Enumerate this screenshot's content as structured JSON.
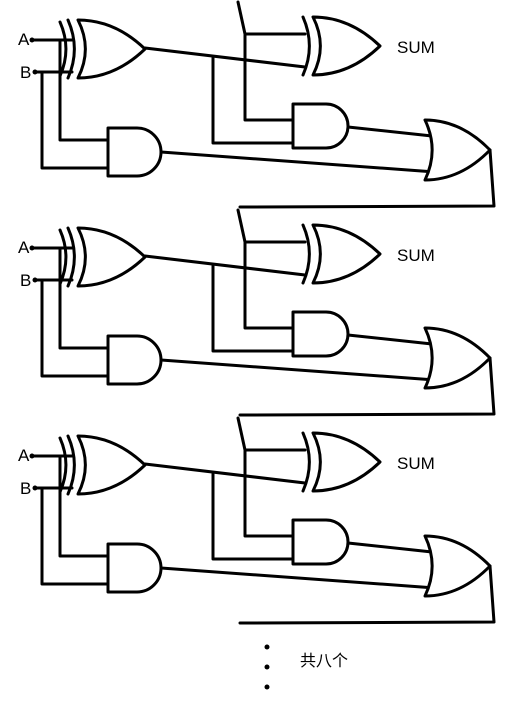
{
  "stages": [
    {
      "input_a": "A",
      "input_b": "B",
      "output": "SUM"
    },
    {
      "input_a": "A",
      "input_b": "B",
      "output": "SUM"
    },
    {
      "input_a": "A",
      "input_b": "B",
      "output": "SUM"
    }
  ],
  "note": "共八个"
}
